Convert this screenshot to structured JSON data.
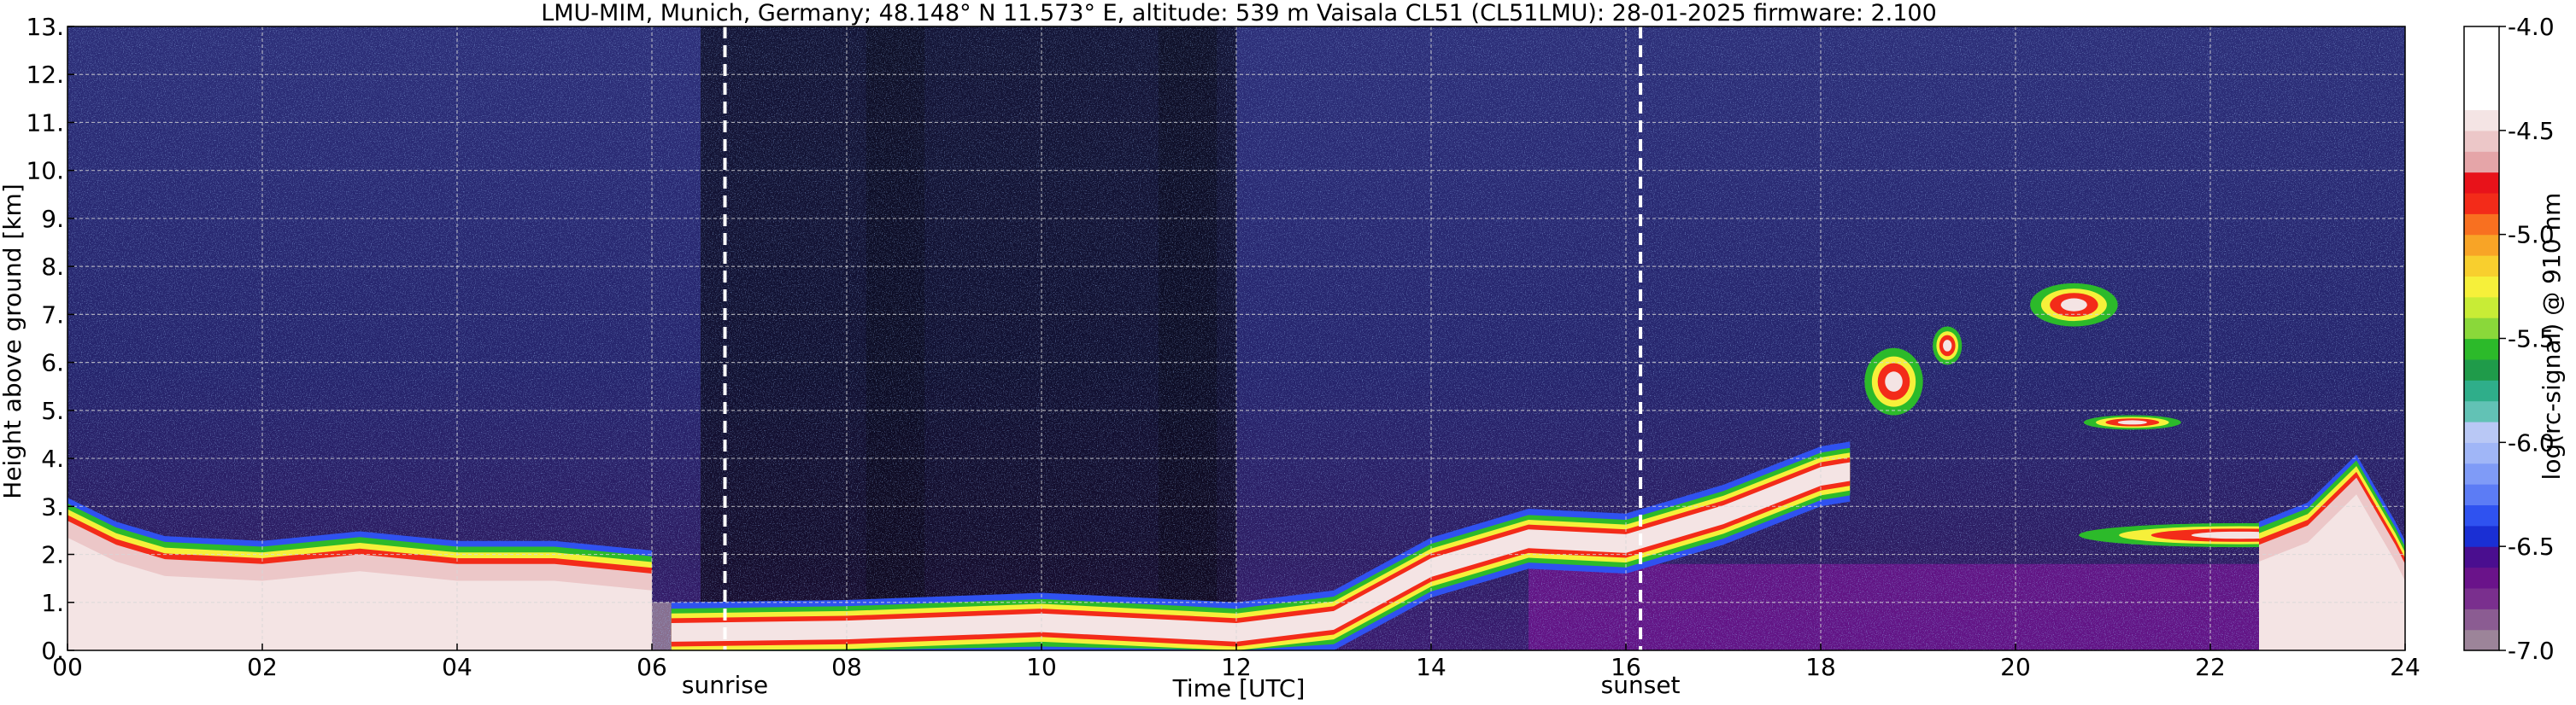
{
  "chart_data": {
    "type": "heatmap",
    "title": "LMU-MIM, Munich, Germany; 48.148° N 11.573° E, altitude: 539 m    Vaisala CL51 (CL51LMU): 28-01-2025    firmware: 2.100",
    "xlabel": "Time [UTC]",
    "ylabel": "Height above ground [km]",
    "xlim": [
      0,
      24
    ],
    "ylim": [
      0,
      13
    ],
    "x_ticks": [
      {
        "value": 0,
        "label": "00"
      },
      {
        "value": 2,
        "label": "02"
      },
      {
        "value": 4,
        "label": "04"
      },
      {
        "value": 6,
        "label": "06"
      },
      {
        "value": 8,
        "label": "08"
      },
      {
        "value": 10,
        "label": "10"
      },
      {
        "value": 12,
        "label": "12"
      },
      {
        "value": 14,
        "label": "14"
      },
      {
        "value": 16,
        "label": "16"
      },
      {
        "value": 18,
        "label": "18"
      },
      {
        "value": 20,
        "label": "20"
      },
      {
        "value": 22,
        "label": "22"
      },
      {
        "value": 24,
        "label": "24"
      }
    ],
    "y_ticks": [
      {
        "value": 0,
        "label": "0."
      },
      {
        "value": 1,
        "label": "1."
      },
      {
        "value": 2,
        "label": "2."
      },
      {
        "value": 3,
        "label": "3."
      },
      {
        "value": 4,
        "label": "4."
      },
      {
        "value": 5,
        "label": "5."
      },
      {
        "value": 6,
        "label": "6."
      },
      {
        "value": 7,
        "label": "7."
      },
      {
        "value": 8,
        "label": "8."
      },
      {
        "value": 9,
        "label": "9."
      },
      {
        "value": 10,
        "label": "10."
      },
      {
        "value": 11,
        "label": "11."
      },
      {
        "value": 12,
        "label": "12."
      },
      {
        "value": 13,
        "label": "13."
      }
    ],
    "grid": true,
    "events": [
      {
        "name": "sunrise",
        "time": 6.75
      },
      {
        "name": "sunset",
        "time": 16.15
      }
    ],
    "colorbar": {
      "label": "log(rc-signal) @ 910 nm",
      "range": [
        -7.0,
        -4.0
      ],
      "ticks": [
        {
          "value": -4.0,
          "label": "-4.0"
        },
        {
          "value": -4.5,
          "label": "-4.5"
        },
        {
          "value": -5.0,
          "label": "-5.0"
        },
        {
          "value": -5.5,
          "label": "-5.5"
        },
        {
          "value": -6.0,
          "label": "-6.0"
        },
        {
          "value": -6.5,
          "label": "-6.5"
        },
        {
          "value": -7.0,
          "label": "-7.0"
        }
      ],
      "colors": [
        "#9c8499",
        "#8b5c92",
        "#7a2f8e",
        "#6a138a",
        "#4a0e8f",
        "#1a2fd4",
        "#2f52f0",
        "#5c7cf5",
        "#7f9bf7",
        "#a0b6f7",
        "#b9c8f5",
        "#62c2b5",
        "#2fae8a",
        "#1f9b4a",
        "#2cba2a",
        "#8ad83a",
        "#c8ec36",
        "#f6f03a",
        "#f8cf2e",
        "#f8a426",
        "#f87020",
        "#f32b19",
        "#e8121a",
        "#e5a5a8",
        "#ecc7c8",
        "#f4e4e4",
        "#ffffff",
        "#ffffff",
        "#ffffff",
        "#ffffff"
      ]
    },
    "features": [
      {
        "kind": "dense_layer",
        "points": [
          [
            0,
            2.7
          ],
          [
            0.5,
            2.2
          ],
          [
            1.0,
            1.9
          ],
          [
            2.0,
            1.8
          ],
          [
            3.0,
            2.0
          ],
          [
            4.0,
            1.8
          ],
          [
            5.0,
            1.8
          ],
          [
            6.0,
            1.6
          ]
        ],
        "base": 0
      },
      {
        "kind": "boundary_layer",
        "points": [
          [
            6.2,
            0.45
          ],
          [
            8.0,
            0.5
          ],
          [
            10.0,
            0.65
          ],
          [
            12.0,
            0.45
          ],
          [
            13.0,
            0.7
          ],
          [
            14.0,
            1.8
          ],
          [
            15.0,
            2.4
          ],
          [
            16.0,
            2.3
          ],
          [
            17.0,
            2.9
          ],
          [
            18.0,
            3.7
          ],
          [
            18.3,
            3.8
          ]
        ]
      },
      {
        "kind": "cloud",
        "center": [
          18.75,
          5.6
        ],
        "extent": [
          0.6,
          1.4
        ]
      },
      {
        "kind": "cloud",
        "center": [
          19.3,
          6.35
        ],
        "extent": [
          0.3,
          0.8
        ]
      },
      {
        "kind": "cloud",
        "center": [
          20.6,
          7.2
        ],
        "extent": [
          0.9,
          0.9
        ]
      },
      {
        "kind": "cloud",
        "center": [
          21.2,
          4.75
        ],
        "extent": [
          1.0,
          0.3
        ]
      },
      {
        "kind": "cloud",
        "center": [
          22.3,
          2.4
        ],
        "extent": [
          3.3,
          0.5
        ]
      },
      {
        "kind": "dense_layer",
        "points": [
          [
            22.5,
            2.2
          ],
          [
            23.0,
            2.6
          ],
          [
            23.5,
            3.6
          ],
          [
            23.9,
            2.2
          ],
          [
            24.0,
            1.8
          ]
        ],
        "base": 0
      }
    ]
  }
}
